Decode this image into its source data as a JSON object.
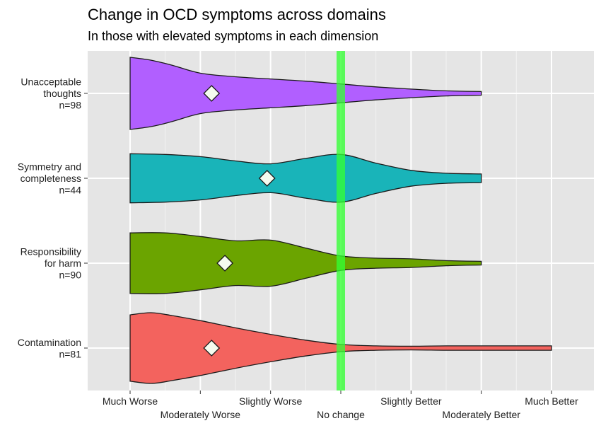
{
  "chart_data": {
    "type": "violin",
    "title": "Change in OCD symptoms across domains",
    "subtitle": "In those with elevated symptoms in each dimension",
    "xlabel": "",
    "ylabel": "",
    "x_scale": [
      1,
      7
    ],
    "x_ticks": [
      {
        "value": 1,
        "label": "Much Worse"
      },
      {
        "value": 2,
        "label": "Moderately Worse"
      },
      {
        "value": 3,
        "label": "Slightly Worse"
      },
      {
        "value": 4,
        "label": "No change"
      },
      {
        "value": 5,
        "label": "Slightly Better"
      },
      {
        "value": 6,
        "label": "Moderately Better"
      },
      {
        "value": 7,
        "label": "Much Better"
      }
    ],
    "reference_line": {
      "value": 4,
      "color": "#33ff33"
    },
    "mean_marker": "diamond",
    "series": [
      {
        "label_lines": [
          "Unacceptable",
          "thoughts",
          "n=98"
        ],
        "color": "#b15fff",
        "mean": 2.16,
        "x": [
          1.0,
          1.3,
          1.6,
          2.0,
          2.5,
          3.0,
          3.5,
          4.0,
          4.5,
          5.0,
          5.5,
          6.0
        ],
        "density": [
          1.0,
          0.92,
          0.78,
          0.56,
          0.46,
          0.4,
          0.34,
          0.26,
          0.18,
          0.12,
          0.07,
          0.05
        ]
      },
      {
        "label_lines": [
          "Symmetry and",
          "completeness",
          "n=44"
        ],
        "color": "#19b4b9",
        "mean": 2.95,
        "x": [
          1.0,
          1.5,
          2.0,
          2.5,
          3.0,
          3.5,
          4.0,
          4.5,
          5.0,
          5.5,
          6.0
        ],
        "density": [
          0.68,
          0.66,
          0.6,
          0.48,
          0.4,
          0.55,
          0.66,
          0.42,
          0.22,
          0.14,
          0.12
        ]
      },
      {
        "label_lines": [
          "Responsibility",
          "for harm",
          "n=90"
        ],
        "color": "#6ba400",
        "mean": 2.35,
        "x": [
          1.0,
          1.5,
          2.0,
          2.5,
          3.0,
          3.5,
          4.0,
          4.5,
          5.0,
          5.5,
          6.0
        ],
        "density": [
          0.84,
          0.84,
          0.74,
          0.62,
          0.64,
          0.42,
          0.2,
          0.14,
          0.12,
          0.07,
          0.05
        ]
      },
      {
        "label_lines": [
          "Contamination",
          "n=81"
        ],
        "color": "#f3635e",
        "mean": 2.16,
        "x": [
          1.0,
          1.3,
          1.6,
          2.0,
          2.5,
          3.0,
          3.5,
          4.0,
          4.5,
          5.0,
          5.5,
          6.0,
          6.5,
          7.0
        ],
        "density": [
          0.92,
          0.98,
          0.9,
          0.76,
          0.56,
          0.38,
          0.22,
          0.1,
          0.06,
          0.05,
          0.06,
          0.06,
          0.06,
          0.06
        ]
      }
    ]
  }
}
